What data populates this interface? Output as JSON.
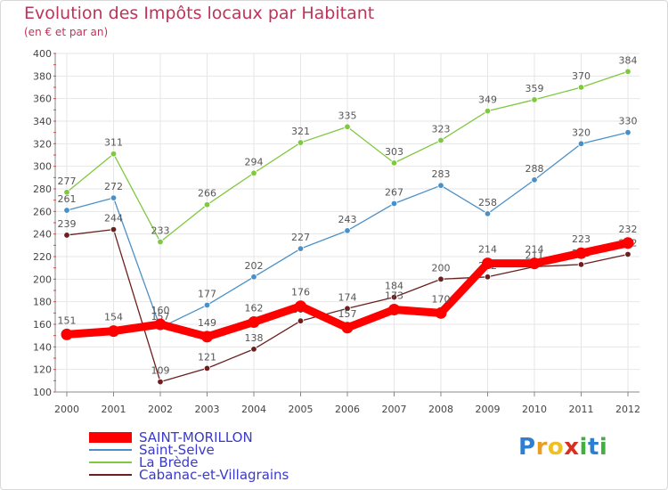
{
  "chart_data": {
    "type": "line",
    "title": "Evolution des Impôts locaux par Habitant",
    "subtitle": "(en € et par an)",
    "xlabel": "",
    "ylabel": "",
    "x": [
      "2000",
      "2001",
      "2002",
      "2003",
      "2004",
      "2005",
      "2006",
      "2007",
      "2008",
      "2009",
      "2010",
      "2011",
      "2012"
    ],
    "ylim": [
      100,
      400
    ],
    "yticks": [
      100,
      120,
      140,
      160,
      180,
      200,
      220,
      240,
      260,
      280,
      300,
      320,
      340,
      360,
      380,
      400
    ],
    "grid": true,
    "legend_position": "bottom-left",
    "series": [
      {
        "name": "SAINT-MORILLON",
        "color": "#ff0000",
        "values": [
          151,
          154,
          160,
          149,
          162,
          176,
          157,
          173,
          170,
          214,
          214,
          223,
          232
        ]
      },
      {
        "name": "Saint-Selve",
        "color": "#4a90c8",
        "values": [
          261,
          272,
          157,
          177,
          202,
          227,
          243,
          267,
          283,
          258,
          288,
          320,
          330
        ]
      },
      {
        "name": "La Brède",
        "color": "#80c840",
        "values": [
          277,
          311,
          233,
          266,
          294,
          321,
          335,
          303,
          323,
          349,
          359,
          370,
          384
        ]
      },
      {
        "name": "Cabanac-et-Villagrains",
        "color": "#6b1f1f",
        "values": [
          239,
          244,
          109,
          121,
          138,
          163,
          174,
          184,
          200,
          202,
          211,
          213,
          222
        ]
      }
    ]
  },
  "legend": {
    "items": [
      {
        "label": "SAINT-MORILLON",
        "color": "#ff0000"
      },
      {
        "label": "Saint-Selve",
        "color": "#4a90c8"
      },
      {
        "label": "La Brède",
        "color": "#80c840"
      },
      {
        "label": "Cabanac-et-Villagrains",
        "color": "#6b1f1f"
      }
    ]
  },
  "logo": {
    "letters": [
      "P",
      "r",
      "o",
      "x",
      "i",
      "t",
      "i"
    ],
    "colors": [
      "#2f7fd0",
      "#e8a020",
      "#f0c020",
      "#d83020",
      "#40b040",
      "#2f7fd0",
      "#40b040"
    ]
  }
}
